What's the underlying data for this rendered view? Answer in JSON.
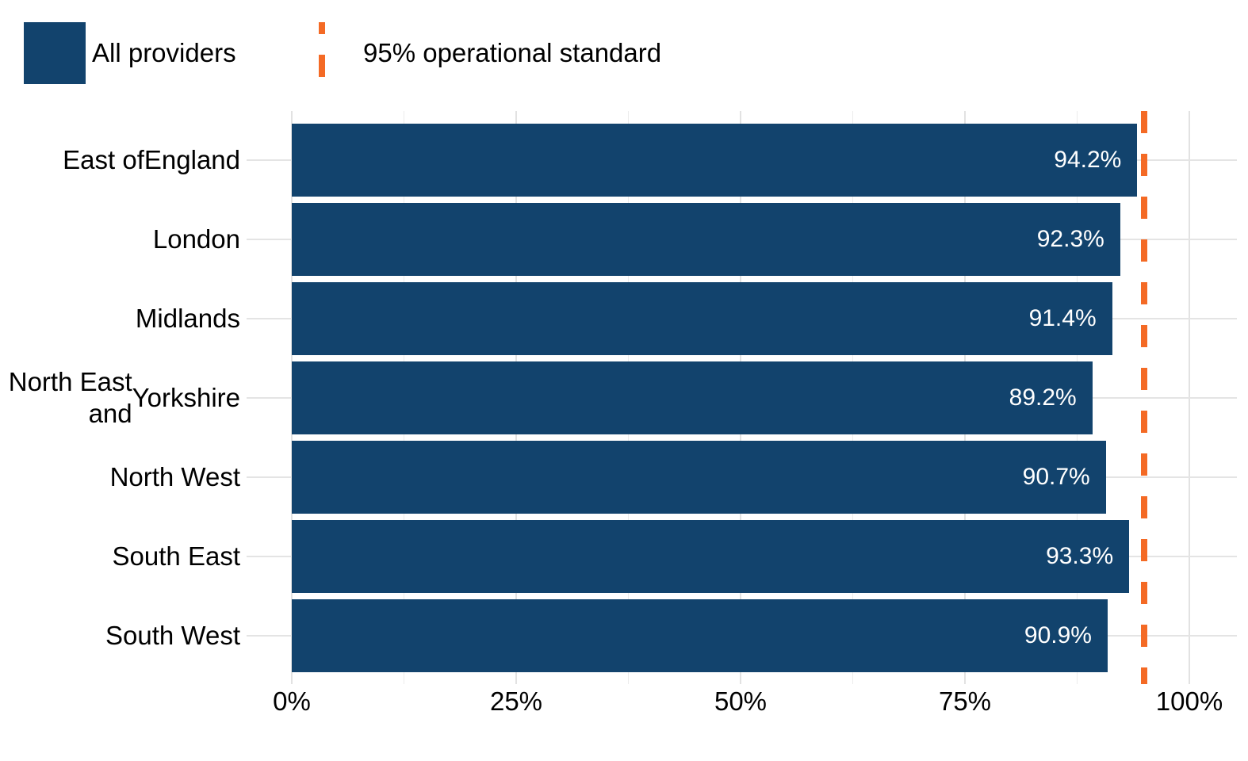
{
  "chart_data": {
    "type": "bar",
    "orientation": "horizontal",
    "categories": [
      "East of England",
      "London",
      "Midlands",
      "North East and Yorkshire",
      "North West",
      "South East",
      "South West"
    ],
    "category_label_lines": [
      [
        "East of",
        "England"
      ],
      [
        "London"
      ],
      [
        "Midlands"
      ],
      [
        "North East and",
        "Yorkshire"
      ],
      [
        "North West"
      ],
      [
        "South East"
      ],
      [
        "South West"
      ]
    ],
    "series": [
      {
        "name": "All providers",
        "values": [
          94.2,
          92.3,
          91.4,
          89.2,
          90.7,
          93.3,
          90.9
        ]
      }
    ],
    "value_labels": [
      "94.2%",
      "92.3%",
      "91.4%",
      "89.2%",
      "90.7%",
      "93.3%",
      "90.9%"
    ],
    "x_axis": {
      "range": [
        0,
        100
      ],
      "tick_values": [
        0,
        25,
        50,
        75,
        100
      ],
      "tick_labels": [
        "0%",
        "25%",
        "50%",
        "75%",
        "100%"
      ],
      "minor_tick_values": [
        12.5,
        37.5,
        62.5,
        87.5
      ]
    },
    "reference_line": {
      "value": 95,
      "label": "95% operational standard",
      "style": "dashed"
    },
    "legend": [
      {
        "label": "All providers",
        "marker": "square",
        "color": "#12436D"
      },
      {
        "label": "95% operational standard",
        "marker": "dashed-line",
        "color": "#F46A25"
      }
    ],
    "grid": "on",
    "legend_position": "top-left",
    "colors": {
      "bar": "#12436D",
      "reference_line": "#F46A25",
      "major_grid": "#e2e2e2",
      "minor_grid": "#ececec",
      "category_grid": "#e4e4e4",
      "axis_text": "#000000",
      "bar_label_text": "#ffffff"
    }
  }
}
